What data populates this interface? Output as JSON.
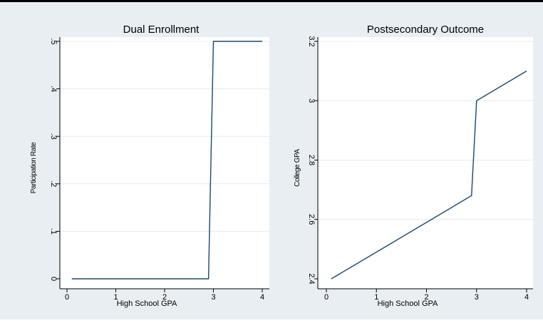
{
  "colors": {
    "outer_background": "#e8eef2",
    "plot_background": "#ffffff",
    "gridline": "#e6ecf0",
    "line": "#1a476f",
    "text": "#000000",
    "top_rule": "#000000"
  },
  "chart_data": [
    {
      "type": "line",
      "title": "Dual Enrollment",
      "xlabel": "High School GPA",
      "ylabel": "Participation Rate",
      "xlim": [
        0,
        4
      ],
      "ylim": [
        0,
        0.5
      ],
      "x_ticks": [
        0,
        1,
        2,
        3,
        4
      ],
      "x_tick_labels": [
        "0",
        "1",
        "2",
        "3",
        "4"
      ],
      "y_ticks": [
        0,
        0.1,
        0.2,
        0.3,
        0.4,
        0.5
      ],
      "y_tick_labels": [
        "0",
        ".1",
        ".2",
        ".3",
        ".4",
        ".5"
      ],
      "grid": true,
      "series": [
        {
          "x": [
            0.1,
            2.9,
            3.0,
            4.0
          ],
          "y": [
            0,
            0,
            0.5,
            0.5
          ]
        }
      ]
    },
    {
      "type": "line",
      "title": "Postsecondary Outcome",
      "xlabel": "High School GPA",
      "ylabel": "College GPA",
      "xlim": [
        0,
        4
      ],
      "ylim": [
        2.4,
        3.2
      ],
      "x_ticks": [
        0,
        1,
        2,
        3,
        4
      ],
      "x_tick_labels": [
        "0",
        "1",
        "2",
        "3",
        "4"
      ],
      "y_ticks": [
        2.4,
        2.6,
        2.8,
        3.0,
        3.2
      ],
      "y_tick_labels": [
        "2.4",
        "2.6",
        "2.8",
        "3",
        "3.2"
      ],
      "grid": true,
      "series": [
        {
          "x": [
            0.1,
            2.9,
            3.0,
            4.0
          ],
          "y": [
            2.4,
            2.68,
            3.0,
            3.1
          ]
        }
      ]
    }
  ]
}
